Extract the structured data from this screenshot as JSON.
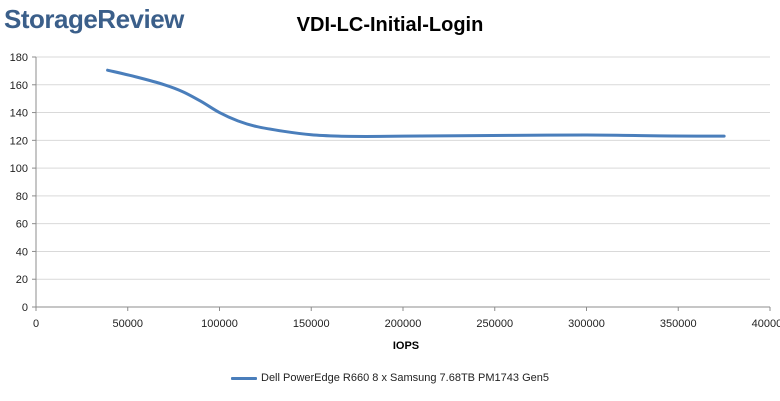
{
  "brand": "StorageReview",
  "chart_data": {
    "type": "line",
    "title": "VDI-LC-Initial-Login",
    "xlabel": "IOPS",
    "ylabel": "",
    "xlim": [
      0,
      400000
    ],
    "ylim": [
      0,
      180
    ],
    "xticks": [
      0,
      50000,
      100000,
      150000,
      200000,
      250000,
      300000,
      350000,
      400000
    ],
    "yticks": [
      0,
      20,
      40,
      60,
      80,
      100,
      120,
      140,
      160,
      180
    ],
    "grid": true,
    "legend_position": "bottom",
    "series": [
      {
        "name": "Dell PowerEdge R660 8 x Samsung 7.68TB PM1743 Gen5",
        "color": "#4a7ebb",
        "x": [
          39000,
          55000,
          70000,
          80000,
          90000,
          100000,
          110000,
          120000,
          135000,
          150000,
          165000,
          180000,
          200000,
          230000,
          260000,
          300000,
          320000,
          340000,
          360000,
          375000
        ],
        "y": [
          170.5,
          165.5,
          160,
          155,
          148,
          140,
          134,
          130,
          126.5,
          124,
          123,
          122.8,
          123,
          123.3,
          123.6,
          123.8,
          123.6,
          123.2,
          123,
          123
        ]
      }
    ]
  }
}
